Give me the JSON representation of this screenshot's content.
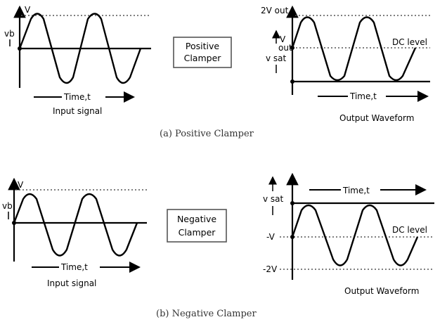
{
  "panel_a": {
    "caption": "(a) Positive Clamper",
    "box_line1": "Positive",
    "box_line2": "Clamper",
    "input": {
      "label_v": "V",
      "label_vb": "vb",
      "time_label": "Time,t",
      "signal_label": "Input signal"
    },
    "output": {
      "label_2v": "2V out",
      "label_v": "V",
      "label_out": "out",
      "label_vsat": "v sat",
      "dc_label": "DC level",
      "time_label": "Time,t",
      "signal_label": "Output Waveform"
    }
  },
  "panel_b": {
    "caption": "(b) Negative Clamper",
    "box_line1": "Negative",
    "box_line2": "Clamper",
    "input": {
      "label_v": "V",
      "label_vb": "vb",
      "time_label": "Time,t",
      "signal_label": "Input signal"
    },
    "output": {
      "label_vsat": "v sat",
      "label_neg_v": "-V",
      "label_neg_2v": "-2V",
      "dc_label": "DC level",
      "time_label": "Time,t",
      "signal_label": "Output Waveform"
    }
  },
  "colors": {
    "ink": "#000000",
    "box_border": "#555555",
    "caption": "#333333"
  }
}
